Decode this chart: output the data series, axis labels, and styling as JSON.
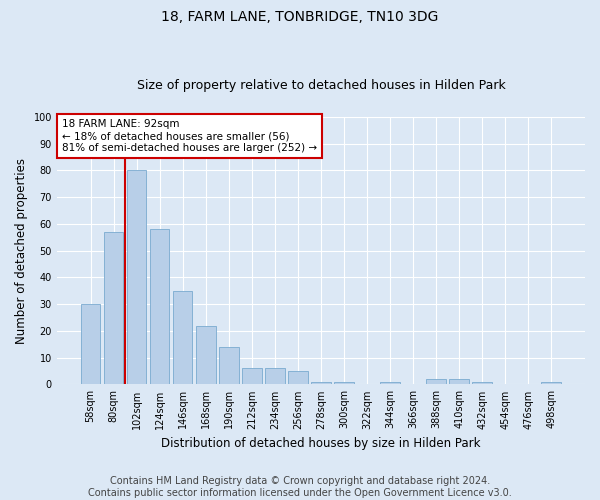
{
  "title": "18, FARM LANE, TONBRIDGE, TN10 3DG",
  "subtitle": "Size of property relative to detached houses in Hilden Park",
  "xlabel": "Distribution of detached houses by size in Hilden Park",
  "ylabel": "Number of detached properties",
  "categories": [
    "58sqm",
    "80sqm",
    "102sqm",
    "124sqm",
    "146sqm",
    "168sqm",
    "190sqm",
    "212sqm",
    "234sqm",
    "256sqm",
    "278sqm",
    "300sqm",
    "322sqm",
    "344sqm",
    "366sqm",
    "388sqm",
    "410sqm",
    "432sqm",
    "454sqm",
    "476sqm",
    "498sqm"
  ],
  "values": [
    30,
    57,
    80,
    58,
    35,
    22,
    14,
    6,
    6,
    5,
    1,
    1,
    0,
    1,
    0,
    2,
    2,
    1,
    0,
    0,
    1
  ],
  "bar_color": "#b8cfe8",
  "bar_edge_color": "#7aaad0",
  "property_line_label": "18 FARM LANE: 92sqm",
  "annotation_line1": "← 18% of detached houses are smaller (56)",
  "annotation_line2": "81% of semi-detached houses are larger (252) →",
  "annotation_box_color": "#ffffff",
  "annotation_box_edge": "#cc0000",
  "vline_color": "#cc0000",
  "ylim": [
    0,
    100
  ],
  "yticks": [
    0,
    10,
    20,
    30,
    40,
    50,
    60,
    70,
    80,
    90,
    100
  ],
  "footer1": "Contains HM Land Registry data © Crown copyright and database right 2024.",
  "footer2": "Contains public sector information licensed under the Open Government Licence v3.0.",
  "background_color": "#dce8f5",
  "plot_bg_color": "#dce8f5",
  "title_fontsize": 10,
  "subtitle_fontsize": 9,
  "xlabel_fontsize": 8.5,
  "ylabel_fontsize": 8.5,
  "tick_fontsize": 7,
  "footer_fontsize": 7,
  "annot_fontsize": 7.5
}
